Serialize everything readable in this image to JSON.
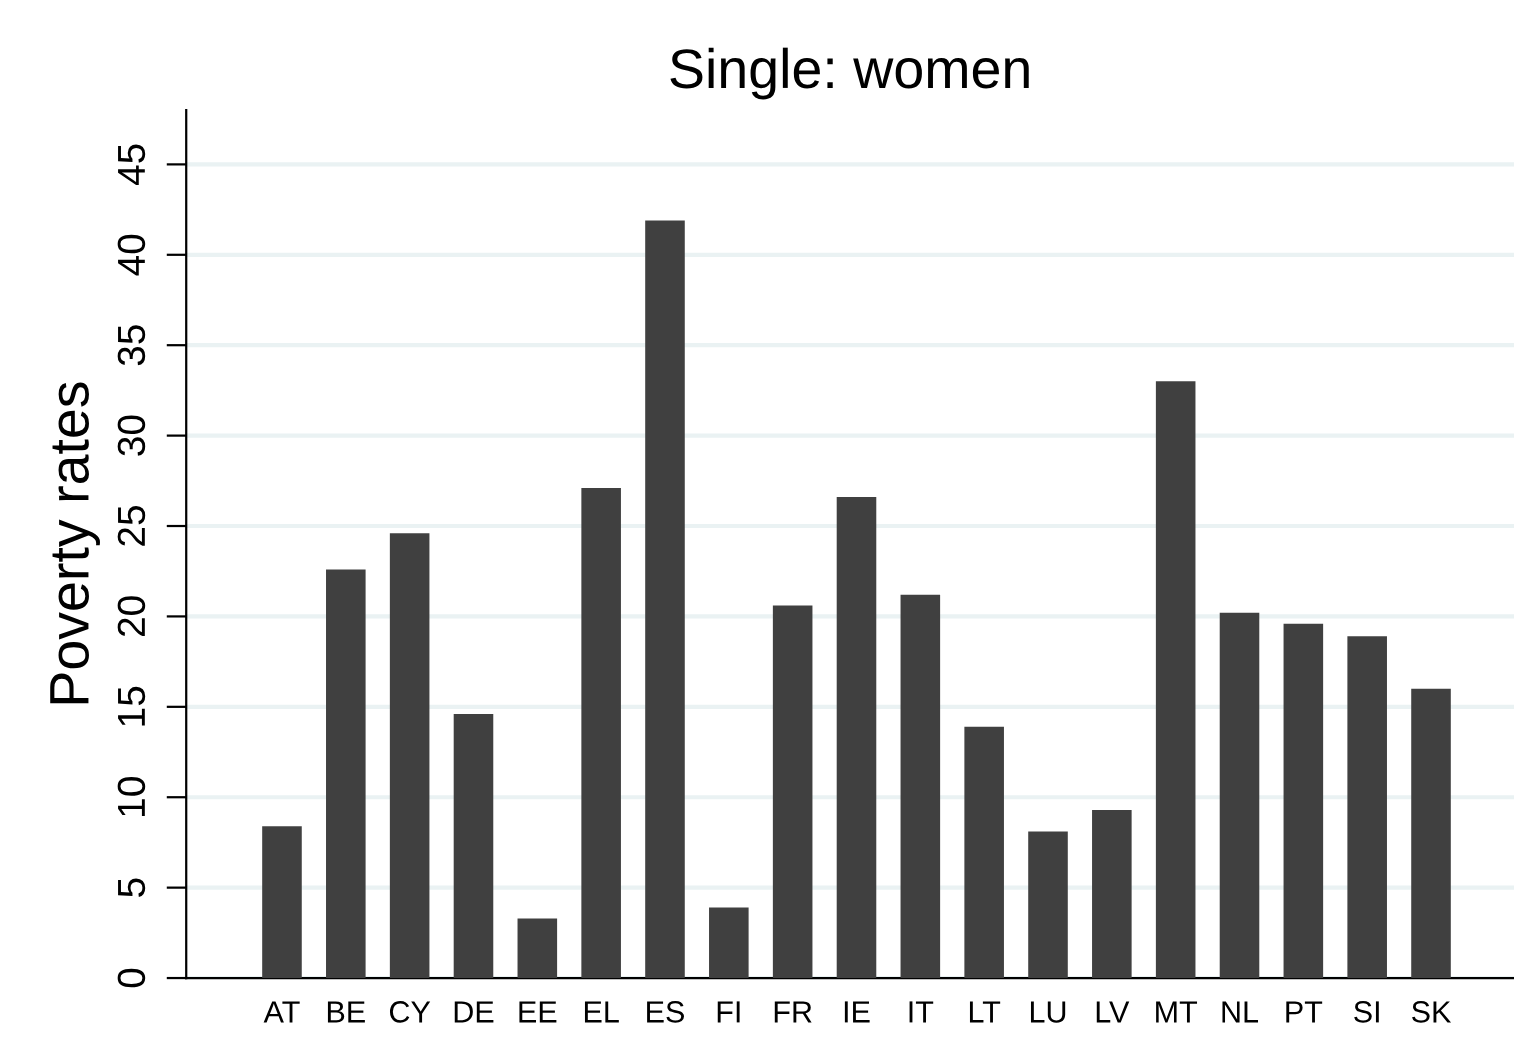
{
  "chart_data": {
    "type": "bar",
    "title": "Single: women",
    "ylabel": "Poverty rates",
    "categories": [
      "AT",
      "BE",
      "CY",
      "DE",
      "EE",
      "EL",
      "ES",
      "FI",
      "FR",
      "IE",
      "IT",
      "LT",
      "LU",
      "LV",
      "MT",
      "NL",
      "PT",
      "SI",
      "SK"
    ],
    "values": [
      8.4,
      22.6,
      24.6,
      14.6,
      3.3,
      27.1,
      41.9,
      3.9,
      20.6,
      26.6,
      21.2,
      13.9,
      8.1,
      9.3,
      33.0,
      20.2,
      19.6,
      18.9,
      16.0
    ],
    "color": "#404040",
    "ylim": [
      0,
      48
    ],
    "yticks": [
      0,
      5,
      10,
      15,
      20,
      25,
      30,
      35,
      40,
      45
    ],
    "grid": "y"
  }
}
